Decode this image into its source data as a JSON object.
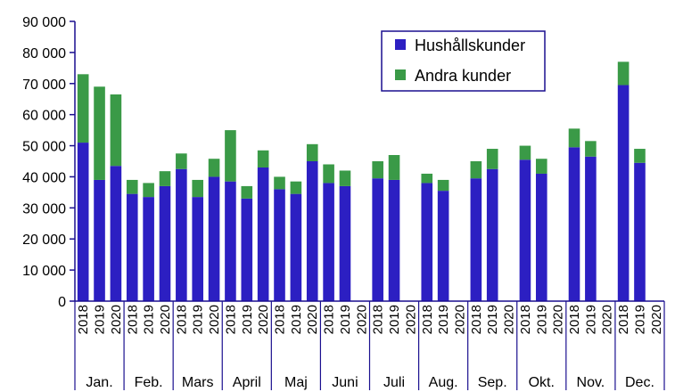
{
  "chart_data": {
    "type": "bar",
    "stacked": true,
    "y_ticks": [
      "0",
      "10 000",
      "20 000",
      "30 000",
      "40 000",
      "50 000",
      "60 000",
      "70 000",
      "80 000",
      "90 000"
    ],
    "ylim": [
      0,
      90000
    ],
    "grid": false,
    "legend_position": "top-right",
    "months": [
      "Jan.",
      "Feb.",
      "Mars",
      "April",
      "Maj",
      "Juni",
      "Juli",
      "Aug.",
      "Sep.",
      "Okt.",
      "Nov.",
      "Dec."
    ],
    "years": [
      "2018",
      "2019",
      "2020"
    ],
    "series": [
      {
        "name": "Hushållskunder",
        "color": "#2c1fc2",
        "values": [
          [
            51000,
            39000,
            43500
          ],
          [
            34500,
            33500,
            37000
          ],
          [
            42500,
            33500,
            40000
          ],
          [
            38500,
            33000,
            43000
          ],
          [
            36000,
            34500,
            45000
          ],
          [
            38000,
            37000,
            null
          ],
          [
            39500,
            39000,
            null
          ],
          [
            38000,
            35500,
            null
          ],
          [
            39500,
            42500,
            null
          ],
          [
            45500,
            41000,
            null
          ],
          [
            49500,
            46500,
            null
          ],
          [
            69500,
            44500,
            null
          ]
        ]
      },
      {
        "name": "Andra kunder",
        "color": "#3a9a47",
        "values": [
          [
            22000,
            30000,
            23000
          ],
          [
            4500,
            4500,
            4800
          ],
          [
            5000,
            5500,
            5800
          ],
          [
            16500,
            4000,
            5500
          ],
          [
            4000,
            4000,
            5500
          ],
          [
            6000,
            5000,
            null
          ],
          [
            5500,
            8000,
            null
          ],
          [
            3000,
            3500,
            null
          ],
          [
            5500,
            6500,
            null
          ],
          [
            4500,
            4800,
            null
          ],
          [
            6000,
            5000,
            null
          ],
          [
            7500,
            4500,
            null
          ]
        ]
      }
    ]
  }
}
